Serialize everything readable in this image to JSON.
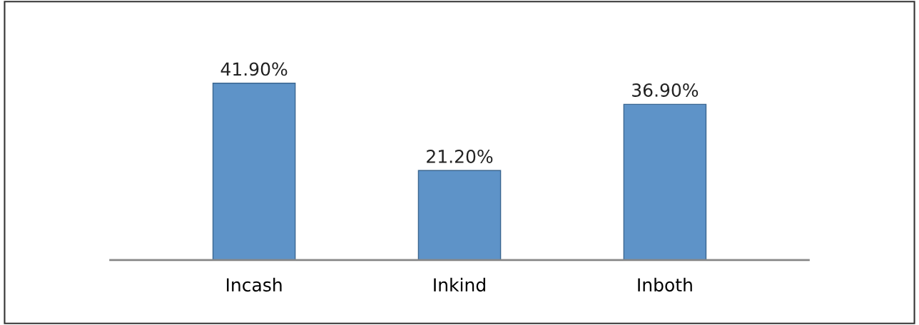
{
  "chart_data": {
    "type": "bar",
    "categories": [
      "Incash",
      "Inkind",
      "Inboth"
    ],
    "values": [
      41.9,
      21.2,
      36.9
    ],
    "value_labels": [
      "41.90%",
      "21.20%",
      "36.90%"
    ],
    "color": "#5e93c8",
    "grid": false,
    "legend": false
  }
}
